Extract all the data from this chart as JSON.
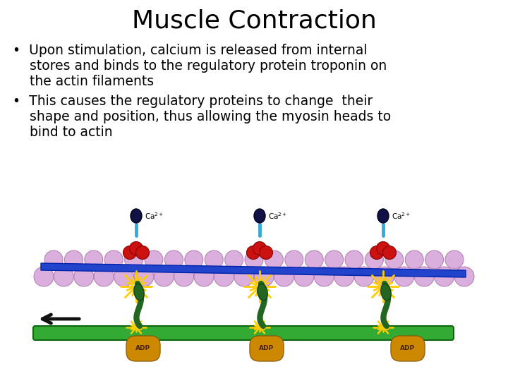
{
  "title": "Muscle Contraction",
  "title_fontsize": 26,
  "bullet1_lines": [
    "•  Upon stimulation, calcium is released from internal",
    "    stores and binds to the regulatory protein troponin on",
    "    the actin filaments"
  ],
  "bullet2_lines": [
    "•  This causes the regulatory proteins to change  their",
    "    shape and position, thus allowing the myosin heads to",
    "    bind to actin"
  ],
  "text_fontsize": 13.5,
  "bg_color": "#ffffff",
  "bead_color": "#daaedd",
  "bead_edge": "#b07ab0",
  "blue_color": "#2244cc",
  "red_color": "#cc1111",
  "green_color": "#226622",
  "green_filament": "#33aa33",
  "yellow_burst": "#ffcc00",
  "navy_ball": "#111144",
  "ca_label_color": "#000000",
  "adp_bg": "#cc8800",
  "adp_text": "#4a2200",
  "arrow_color": "#111111"
}
